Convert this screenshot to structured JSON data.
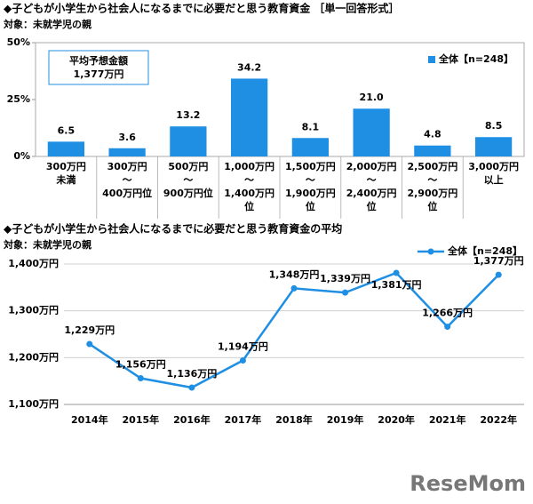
{
  "chart_data": [
    {
      "type": "bar",
      "title": "◆子どもが小学生から社会人になるまでに必要だと思う教育資金 ［単一回答形式］",
      "subtitle": "対象：未就学児の親",
      "annotation": [
        "平均予想金額",
        "1,377万円"
      ],
      "categories": [
        [
          "300万円",
          "未満"
        ],
        [
          "300万円",
          "～",
          "400万円位"
        ],
        [
          "500万円",
          "～",
          "900万円位"
        ],
        [
          "1,000万円",
          "～",
          "1,400万円",
          "位"
        ],
        [
          "1,500万円",
          "～",
          "1,900万円",
          "位"
        ],
        [
          "2,000万円",
          "～",
          "2,400万円",
          "位"
        ],
        [
          "2,500万円",
          "～",
          "2,900万円",
          "位"
        ],
        [
          "3,000万円",
          "以上"
        ]
      ],
      "series": [
        {
          "name": "全体【n=248】",
          "color": "#1f8fe3",
          "values": [
            6.5,
            3.6,
            13.2,
            34.2,
            8.1,
            21.0,
            4.8,
            8.5
          ],
          "value_labels": [
            "6.5",
            "3.6",
            "13.2",
            "34.2",
            "8.1",
            "21.0",
            "4.8",
            "8.5"
          ]
        }
      ],
      "ylim": [
        0,
        50
      ],
      "yticks": [
        {
          "value": 0,
          "label": "0%"
        },
        {
          "value": 25,
          "label": "25%"
        },
        {
          "value": 50,
          "label": "50%"
        }
      ],
      "grid": false
    },
    {
      "type": "line",
      "title": "◆子どもが小学生から社会人になるまでに必要だと思う教育資金の平均",
      "subtitle": "対象：未就学児の親",
      "categories": [
        "2014年",
        "2015年",
        "2016年",
        "2017年",
        "2018年",
        "2019年",
        "2020年",
        "2021年",
        "2022年"
      ],
      "series": [
        {
          "name": "全体【n=248】",
          "color": "#1f8fe3",
          "values": [
            1229,
            1156,
            1136,
            1194,
            1348,
            1339,
            1381,
            1266,
            1377
          ],
          "value_labels": [
            "1,229万円",
            "1,156万円",
            "1,136万円",
            "1,194万円",
            "1,348万円",
            "1,339万円",
            "1,381万円",
            "1,266万円",
            "1,377万円"
          ]
        }
      ],
      "ylim": [
        1100,
        1400
      ],
      "yticks": [
        {
          "value": 1100,
          "label": "1,100万円"
        },
        {
          "value": 1200,
          "label": "1,200万円"
        },
        {
          "value": 1300,
          "label": "1,300万円"
        },
        {
          "value": 1400,
          "label": "1,400万円"
        }
      ],
      "grid": true
    }
  ],
  "watermark": "ReseMom"
}
